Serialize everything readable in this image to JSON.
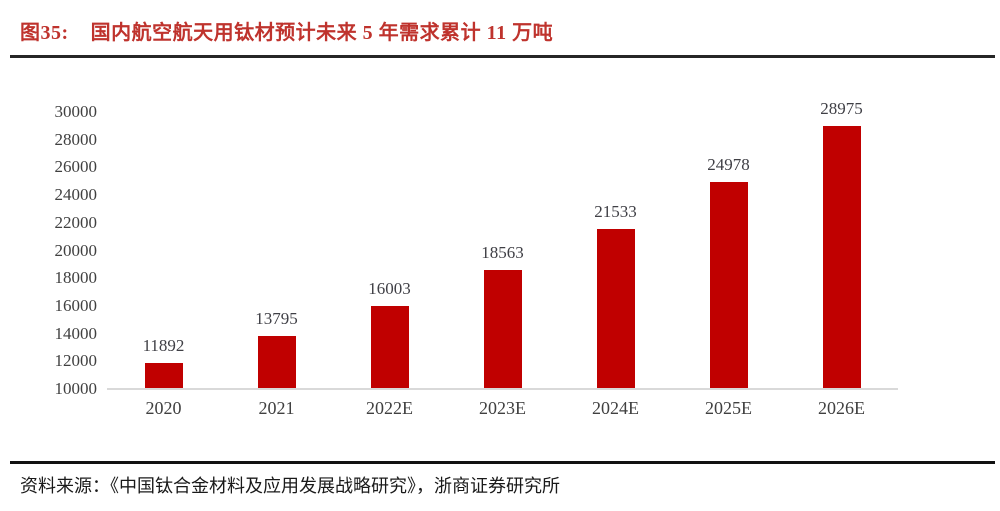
{
  "header": {
    "fig_label": "图35:",
    "title": "国内航空航天用钛材预计未来 5 年需求累计 11 万吨"
  },
  "chart_data": {
    "type": "bar",
    "title": "国内航空航天用钛材预计未来 5 年需求累计 11 万吨",
    "categories": [
      "2020",
      "2021",
      "2022E",
      "2023E",
      "2024E",
      "2025E",
      "2026E"
    ],
    "values": [
      11892,
      13795,
      16003,
      18563,
      21533,
      24978,
      28975
    ],
    "value_labels": [
      "11892",
      "13795",
      "16003",
      "18563",
      "21533",
      "24978",
      "28975"
    ],
    "ylim": [
      10000,
      30000
    ],
    "ytick_step": 2000,
    "ytick_labels": [
      "10000",
      "12000",
      "14000",
      "16000",
      "18000",
      "20000",
      "22000",
      "24000",
      "26000",
      "28000",
      "30000"
    ],
    "xlabel": "",
    "ylabel": "",
    "grid": false,
    "legend": false,
    "bar_color": "#c00000",
    "label_color": "#404040"
  },
  "footer": {
    "source": "资料来源：《中国钛合金材料及应用发展战略研究》，浙商证券研究所"
  }
}
